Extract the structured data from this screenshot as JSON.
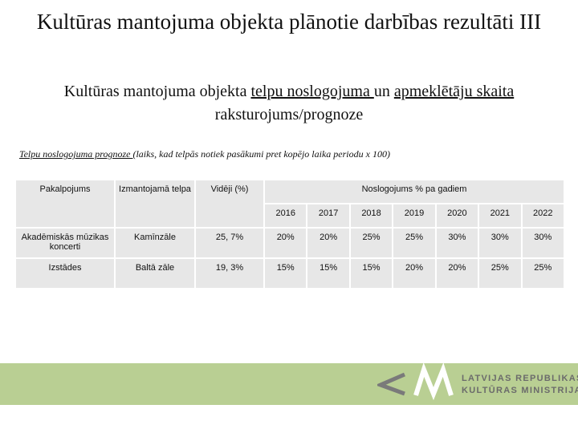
{
  "header": {
    "title": "Kultūras mantojuma objekta plānotie darbības rezultāti III",
    "subtitle": [
      {
        "text": "Kultūras mantojuma objekta ",
        "underline": false
      },
      {
        "text": "telpu noslogojuma ",
        "underline": true
      },
      {
        "text": "un ",
        "underline": false
      },
      {
        "text": "apmeklētāju skaita",
        "underline": true
      },
      {
        "text": " raksturojums/prognoze",
        "underline": false
      }
    ]
  },
  "caption": [
    {
      "text": "Telpu noslogojuma prognoze ",
      "underline": true
    },
    {
      "text": "(laiks, kad telpās notiek pasākumi pret kopējo laika periodu x 100)",
      "underline": false
    }
  ],
  "table": {
    "headers": [
      "Pakalpojums",
      "Izmantojamā telpa",
      "Vidēji (%)"
    ],
    "group_header": "Noslogojums % pa gadiem",
    "years": [
      "2016",
      "2017",
      "2018",
      "2019",
      "2020",
      "2021",
      "2022"
    ],
    "rows": [
      [
        "Akadēmiskās mūzikas koncerti",
        "Kamīnzāle",
        "25, 7%",
        "20%",
        "20%",
        "25%",
        "25%",
        "30%",
        "30%",
        "30%"
      ],
      [
        "Izstādes",
        "Baltā zāle",
        "19, 3%",
        "15%",
        "15%",
        "15%",
        "20%",
        "20%",
        "25%",
        "25%"
      ]
    ]
  },
  "footer": {
    "logo_lines": [
      "LATVIJAS REPUBLIKAS",
      "KULTŪRAS MINISTRIJA"
    ]
  }
}
